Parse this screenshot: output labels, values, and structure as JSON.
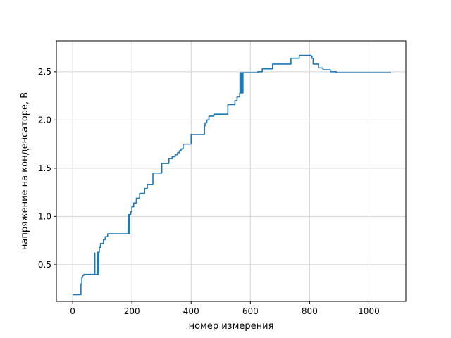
{
  "chart_data": {
    "type": "line",
    "title": "",
    "xlabel": "номер измерения",
    "ylabel": "напряжение на конденсаторе, В",
    "xlim": [
      -55,
      1125
    ],
    "ylim": [
      0.12,
      2.82
    ],
    "grid": true,
    "x_ticks": [
      0,
      200,
      400,
      600,
      800,
      1000
    ],
    "y_ticks": [
      0.5,
      1.0,
      1.5,
      2.0,
      2.5
    ],
    "x_tick_labels": [
      "0",
      "200",
      "400",
      "600",
      "800",
      "1000"
    ],
    "y_tick_labels": [
      "0.5",
      "1.0",
      "1.5",
      "2.0",
      "2.5"
    ],
    "series": [
      {
        "color": "#1f77b4",
        "step": true,
        "x": [
          0,
          28,
          31,
          34,
          38,
          42,
          74,
          75,
          76,
          77,
          83,
          84,
          85,
          86,
          88,
          90,
          92,
          94,
          98,
          104,
          110,
          118,
          186,
          187,
          188,
          189,
          190,
          191,
          192,
          193,
          196,
          200,
          206,
          215,
          226,
          233,
          243,
          252,
          271,
          301,
          325,
          336,
          346,
          350,
          354,
          360,
          366,
          373,
          382,
          400,
          445,
          447,
          453,
          460,
          477,
          524,
          548,
          555,
          564,
          565,
          566,
          567,
          568,
          569,
          570,
          571,
          572,
          573,
          574,
          575,
          576,
          578,
          580,
          625,
          640,
          652,
          675,
          737,
          765,
          800,
          805,
          808,
          812,
          830,
          845,
          870,
          890,
          1075
        ],
        "y": [
          0.19,
          0.3,
          0.37,
          0.39,
          0.4,
          0.4,
          0.62,
          0.4,
          0.4,
          0.4,
          0.62,
          0.4,
          0.63,
          0.4,
          0.63,
          0.68,
          0.68,
          0.72,
          0.72,
          0.76,
          0.79,
          0.82,
          0.82,
          0.9,
          1.02,
          0.82,
          1.02,
          0.82,
          1.02,
          1.02,
          1.05,
          1.1,
          1.14,
          1.19,
          1.24,
          1.24,
          1.29,
          1.33,
          1.45,
          1.55,
          1.6,
          1.62,
          1.64,
          1.64,
          1.66,
          1.68,
          1.7,
          1.75,
          1.75,
          1.85,
          1.94,
          1.97,
          2.0,
          2.04,
          2.06,
          2.16,
          2.2,
          2.24,
          2.28,
          2.49,
          2.28,
          2.49,
          2.28,
          2.49,
          2.28,
          2.49,
          2.28,
          2.49,
          2.28,
          2.49,
          2.49,
          2.49,
          2.49,
          2.5,
          2.53,
          2.53,
          2.58,
          2.64,
          2.67,
          2.67,
          2.66,
          2.64,
          2.58,
          2.54,
          2.52,
          2.5,
          2.49,
          2.49
        ]
      }
    ]
  }
}
